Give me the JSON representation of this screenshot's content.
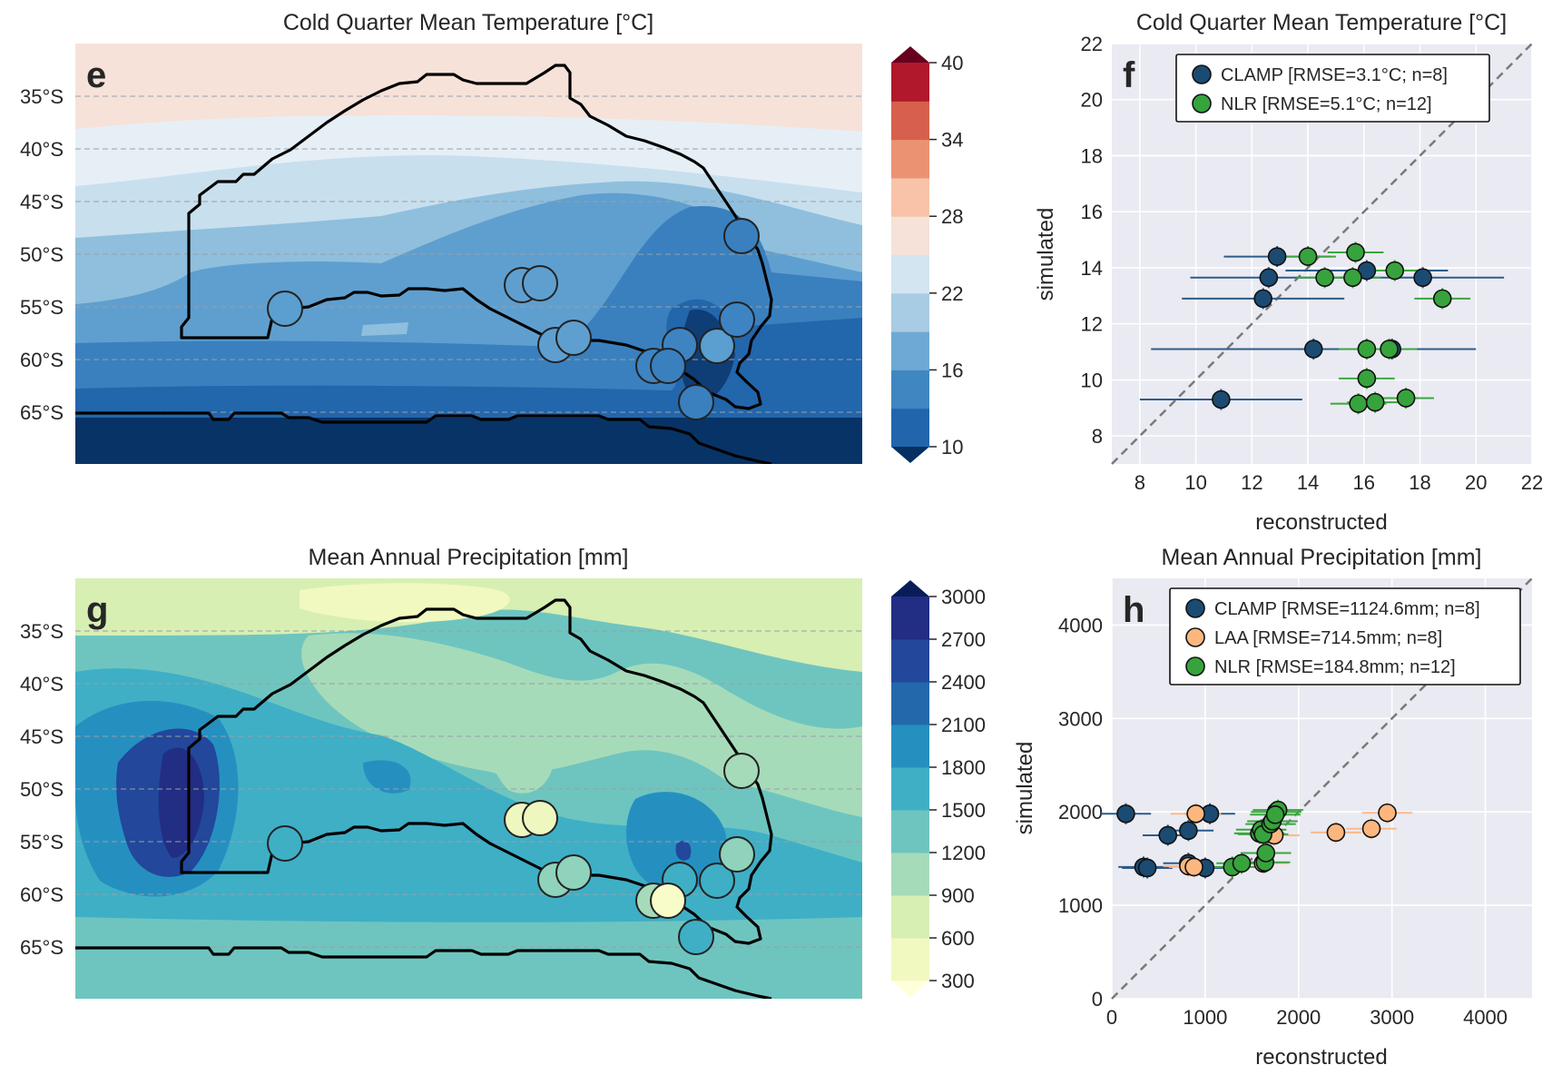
{
  "panels": {
    "e": {
      "label": "e",
      "title": "Cold Quarter Mean Temperature [°C]",
      "lat_labels": [
        "35°S",
        "40°S",
        "45°S",
        "50°S",
        "55°S",
        "60°S",
        "65°S"
      ],
      "colorbar": {
        "ticks": [
          "10",
          "16",
          "22",
          "28",
          "34",
          "40"
        ],
        "colors": [
          "#2166ac",
          "#3f87c1",
          "#6ea9d3",
          "#a8cce4",
          "#d2e5f0",
          "#f6e2d9",
          "#f8c3a8",
          "#eb9273",
          "#d6604d",
          "#b2182b"
        ],
        "under_color": "#053061",
        "over_color": "#67001f"
      },
      "field_colors": {
        "north_band": "#f6e2d9",
        "very_light": "#e6eff6",
        "light": "#c8dfee",
        "mid": "#8fbfdd",
        "blue": "#5f9fcf",
        "darker": "#3a80bf",
        "dark": "#2266ac",
        "darkest": "#0f3d75",
        "south_band": "#083366"
      }
    },
    "g": {
      "label": "g",
      "title": "Mean Annual Precipitation [mm]",
      "lat_labels": [
        "35°S",
        "40°S",
        "45°S",
        "50°S",
        "55°S",
        "60°S",
        "65°S"
      ],
      "colorbar": {
        "ticks": [
          "300",
          "600",
          "900",
          "1200",
          "1500",
          "1800",
          "2100",
          "2400",
          "2700",
          "3000"
        ],
        "colors": [
          "#f1f9c0",
          "#d7efb3",
          "#a6dbb9",
          "#6ec5bf",
          "#3fafc6",
          "#2590c0",
          "#2269ac",
          "#22479b",
          "#222d84"
        ],
        "under_color": "#ffffd9",
        "over_color": "#081d58"
      },
      "field_colors": {
        "very_dry": "#f1f9c0",
        "dry": "#d7efb3",
        "medium": "#a6dbb9",
        "wet": "#6ec5bf",
        "wetter": "#3fafc6",
        "very_wet": "#2590c0",
        "wettest": "#22479b",
        "extreme": "#222d84"
      }
    },
    "f": {
      "label": "f",
      "title": "Cold Quarter Mean Temperature [°C]",
      "xlabel": "reconstructed",
      "ylabel": "simulated",
      "legend": [
        {
          "text": "CLAMP [RMSE=3.1°C; n=8]",
          "color": "#1b4b72"
        },
        {
          "text": "NLR [RMSE=5.1°C; n=12]",
          "color": "#37a33c"
        }
      ]
    },
    "h": {
      "label": "h",
      "title": "Mean Annual Precipitation [mm]",
      "xlabel": "reconstructed",
      "ylabel": "simulated",
      "legend": [
        {
          "text": "CLAMP [RMSE=1124.6mm; n=8]",
          "color": "#1b4b72"
        },
        {
          "text": "LAA [RMSE=714.5mm; n=8]",
          "color": "#fdb77e"
        },
        {
          "text": "NLR [RMSE=184.8mm; n=12]",
          "color": "#37a33c"
        }
      ]
    }
  },
  "chart_data": [
    {
      "type": "heatmap",
      "title": "Cold Quarter Mean Temperature [°C]",
      "ylabel": "",
      "xlabel": "",
      "lat_ticks": [
        "35°S",
        "40°S",
        "45°S",
        "50°S",
        "55°S",
        "60°S",
        "65°S"
      ],
      "colorbar_range": [
        10,
        40
      ],
      "colorbar_levels": [
        10,
        13,
        16,
        19,
        22,
        25,
        28,
        31,
        34,
        37,
        40
      ],
      "sites": [
        {
          "lat": -55.5,
          "value": 16.5
        },
        {
          "lat": -53.2,
          "value": 15
        },
        {
          "lat": -53,
          "value": 16
        },
        {
          "lat": -58.5,
          "value": 15.5
        },
        {
          "lat": -58,
          "value": 16
        },
        {
          "lat": -60.5,
          "value": 13.5
        },
        {
          "lat": -61,
          "value": 13
        },
        {
          "lat": -59,
          "value": 15
        },
        {
          "lat": -59,
          "value": 16
        },
        {
          "lat": -56.5,
          "value": 13.8
        },
        {
          "lat": -64,
          "value": 12.5
        },
        {
          "lat": -48.5,
          "value": 13
        }
      ]
    },
    {
      "type": "scatter",
      "title": "Cold Quarter Mean Temperature [°C]",
      "xlabel": "reconstructed",
      "ylabel": "simulated",
      "xlim": [
        7,
        22
      ],
      "ylim": [
        7,
        22
      ],
      "xticks": [
        8,
        10,
        12,
        14,
        16,
        18,
        20,
        22
      ],
      "yticks": [
        8,
        10,
        12,
        14,
        16,
        18,
        20,
        22
      ],
      "series": [
        {
          "name": "CLAMP [RMSE=3.1°C; n=8]",
          "color": "#1b4b72",
          "points": [
            [
              12.9,
              14.4,
              1.9
            ],
            [
              12.6,
              13.65,
              2.8
            ],
            [
              16.1,
              13.9,
              2.9
            ],
            [
              18.1,
              13.65,
              2.9
            ],
            [
              12.4,
              12.9,
              2.9
            ],
            [
              14.2,
              11.1,
              5.8
            ],
            [
              17.0,
              11.1,
              2.9
            ],
            [
              10.9,
              9.3,
              2.9
            ]
          ]
        },
        {
          "name": "NLR [RMSE=5.1°C; n=12]",
          "color": "#37a33c",
          "points": [
            [
              14.0,
              14.4,
              1.0
            ],
            [
              15.7,
              14.55,
              1.0
            ],
            [
              17.1,
              13.9,
              1.0
            ],
            [
              14.6,
              13.65,
              1.0
            ],
            [
              15.6,
              13.65,
              1.0
            ],
            [
              18.8,
              12.9,
              1.0
            ],
            [
              16.1,
              11.1,
              1.0
            ],
            [
              16.9,
              11.1,
              1.0
            ],
            [
              16.1,
              10.05,
              1.0
            ],
            [
              15.8,
              9.15,
              1.0
            ],
            [
              16.4,
              9.2,
              1.0
            ],
            [
              17.5,
              9.35,
              1.0
            ]
          ]
        }
      ]
    },
    {
      "type": "heatmap",
      "title": "Mean Annual Precipitation [mm]",
      "ylabel": "",
      "xlabel": "",
      "lat_ticks": [
        "35°S",
        "40°S",
        "45°S",
        "50°S",
        "55°S",
        "60°S",
        "65°S"
      ],
      "colorbar_range": [
        300,
        3000
      ],
      "colorbar_levels": [
        300,
        600,
        900,
        1200,
        1500,
        1800,
        2100,
        2400,
        2700,
        3000
      ],
      "sites": [
        {
          "lat": -55.5,
          "value": 1500
        },
        {
          "lat": -53.2,
          "value": 700
        },
        {
          "lat": -53,
          "value": 700
        },
        {
          "lat": -58.5,
          "value": 1200
        },
        {
          "lat": -58,
          "value": 1200
        },
        {
          "lat": -60.5,
          "value": 1100
        },
        {
          "lat": -61,
          "value": 500
        },
        {
          "lat": -59,
          "value": 1500
        },
        {
          "lat": -59,
          "value": 1500
        },
        {
          "lat": -56.5,
          "value": 1200
        },
        {
          "lat": -64,
          "value": 1400
        },
        {
          "lat": -48.5,
          "value": 1100
        }
      ]
    },
    {
      "type": "scatter",
      "title": "Mean Annual Precipitation [mm]",
      "xlabel": "reconstructed",
      "ylabel": "simulated",
      "xlim": [
        0,
        4500
      ],
      "ylim": [
        0,
        4500
      ],
      "xticks": [
        0,
        1000,
        2000,
        3000,
        4000
      ],
      "yticks": [
        0,
        1000,
        2000,
        3000,
        4000
      ],
      "series": [
        {
          "name": "CLAMP [RMSE=1124.6mm; n=8]",
          "color": "#1b4b72",
          "points": [
            [
              150,
              1980
            ],
            [
              600,
              1750
            ],
            [
              820,
              1800
            ],
            [
              1050,
              1980
            ],
            [
              340,
              1410
            ],
            [
              820,
              1450
            ],
            [
              380,
              1400
            ],
            [
              1000,
              1400
            ]
          ]
        },
        {
          "name": "LAA [RMSE=714.5mm; n=8]",
          "color": "#fdb77e",
          "points": [
            [
              900,
              1980
            ],
            [
              1740,
              1750
            ],
            [
              2400,
              1780
            ],
            [
              2780,
              1820
            ],
            [
              2950,
              1990
            ],
            [
              820,
              1420
            ],
            [
              880,
              1410
            ],
            [
              1620,
              1450
            ]
          ]
        },
        {
          "name": "NLR [RMSE=184.8mm; n=12]",
          "color": "#37a33c",
          "points": [
            [
              1290,
              1410
            ],
            [
              1390,
              1450
            ],
            [
              1640,
              1460
            ],
            [
              1650,
              1560
            ],
            [
              1580,
              1770
            ],
            [
              1600,
              1810
            ],
            [
              1620,
              1760
            ],
            [
              1700,
              1870
            ],
            [
              1720,
              1900
            ],
            [
              1760,
              2000
            ],
            [
              1780,
              2020
            ],
            [
              1750,
              1970
            ]
          ]
        }
      ]
    }
  ]
}
